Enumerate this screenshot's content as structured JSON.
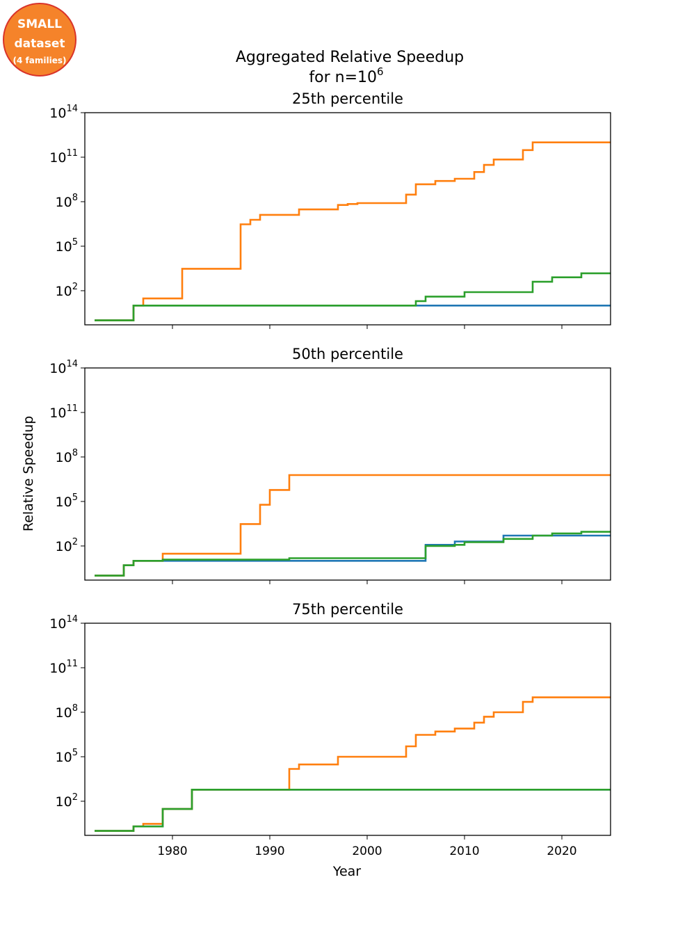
{
  "badge": {
    "line1": "SMALL",
    "line2": "dataset",
    "line3": "(4 families)",
    "fill": "#f5832a",
    "border": "#d9332a"
  },
  "figure_title": {
    "line1": "Aggregated Relative Speedup",
    "line2_prefix": "for n=10",
    "line2_exp": "6"
  },
  "shared_axes": {
    "xlabel": "Year",
    "ylabel": "Relative Speedup",
    "x_ticks": [
      1980,
      1990,
      2000,
      2010,
      2020
    ],
    "xlim": [
      1971,
      2025
    ],
    "y_ticks_exponents": [
      2,
      5,
      8,
      11,
      14
    ],
    "ylim_log10": [
      -0.3,
      14
    ]
  },
  "series_colors": {
    "blue": "#1f77b4",
    "orange": "#ff7f0e",
    "green": "#2ca02c"
  },
  "chart_data": [
    {
      "type": "line",
      "step": "post",
      "title": "25th percentile",
      "y_scale": "log",
      "series": [
        {
          "color": "blue",
          "points": [
            [
              1972,
              1
            ],
            [
              1976,
              10
            ],
            [
              2025,
              10
            ]
          ]
        },
        {
          "color": "orange",
          "points": [
            [
              1972,
              1
            ],
            [
              1976,
              10
            ],
            [
              1977,
              30
            ],
            [
              1981,
              3000
            ],
            [
              1987,
              3000000
            ],
            [
              1988,
              6000000
            ],
            [
              1989,
              13000000
            ],
            [
              1992,
              13000000
            ],
            [
              1993,
              30000000
            ],
            [
              1997,
              60000000
            ],
            [
              1998,
              70000000
            ],
            [
              1999,
              80000000
            ],
            [
              2004,
              300000000
            ],
            [
              2005,
              1500000000
            ],
            [
              2007,
              2500000000
            ],
            [
              2009,
              3500000000
            ],
            [
              2011,
              10000000000
            ],
            [
              2012,
              30000000000
            ],
            [
              2013,
              70000000000
            ],
            [
              2016,
              300000000000
            ],
            [
              2017,
              1000000000000
            ],
            [
              2025,
              1000000000000
            ]
          ]
        },
        {
          "color": "green",
          "points": [
            [
              1972,
              1
            ],
            [
              1976,
              10
            ],
            [
              2005,
              20
            ],
            [
              2006,
              40
            ],
            [
              2010,
              80
            ],
            [
              2017,
              400
            ],
            [
              2019,
              800
            ],
            [
              2022,
              1500
            ],
            [
              2025,
              1500
            ]
          ]
        }
      ]
    },
    {
      "type": "line",
      "step": "post",
      "title": "50th percentile",
      "y_scale": "log",
      "series": [
        {
          "color": "blue",
          "points": [
            [
              1972,
              1
            ],
            [
              1975,
              5
            ],
            [
              1976,
              10
            ],
            [
              2006,
              120
            ],
            [
              2009,
              200
            ],
            [
              2014,
              500
            ],
            [
              2025,
              500
            ]
          ]
        },
        {
          "color": "orange",
          "points": [
            [
              1972,
              1
            ],
            [
              1975,
              5
            ],
            [
              1976,
              10
            ],
            [
              1979,
              30
            ],
            [
              1987,
              3000
            ],
            [
              1989,
              60000
            ],
            [
              1990,
              600000
            ],
            [
              1992,
              6000000
            ],
            [
              2025,
              6000000
            ]
          ]
        },
        {
          "color": "green",
          "points": [
            [
              1972,
              1
            ],
            [
              1975,
              5
            ],
            [
              1976,
              10
            ],
            [
              1979,
              12
            ],
            [
              1992,
              15
            ],
            [
              2006,
              100
            ],
            [
              2009,
              120
            ],
            [
              2010,
              180
            ],
            [
              2014,
              300
            ],
            [
              2017,
              500
            ],
            [
              2019,
              700
            ],
            [
              2022,
              900
            ],
            [
              2025,
              900
            ]
          ]
        }
      ]
    },
    {
      "type": "line",
      "step": "post",
      "title": "75th percentile",
      "y_scale": "log",
      "series": [
        {
          "color": "blue",
          "points": [
            [
              1972,
              1
            ],
            [
              1976,
              2
            ],
            [
              1979,
              30
            ],
            [
              1982,
              600
            ],
            [
              2025,
              600
            ]
          ]
        },
        {
          "color": "orange",
          "points": [
            [
              1972,
              1
            ],
            [
              1976,
              2
            ],
            [
              1977,
              3
            ],
            [
              1979,
              30
            ],
            [
              1982,
              600
            ],
            [
              1992,
              15000
            ],
            [
              1993,
              30000
            ],
            [
              1997,
              100000
            ],
            [
              2004,
              500000
            ],
            [
              2005,
              3000000
            ],
            [
              2007,
              5000000
            ],
            [
              2009,
              8000000
            ],
            [
              2011,
              20000000
            ],
            [
              2012,
              50000000
            ],
            [
              2013,
              100000000
            ],
            [
              2016,
              500000000
            ],
            [
              2017,
              1000000000
            ],
            [
              2025,
              1000000000
            ]
          ]
        },
        {
          "color": "green",
          "points": [
            [
              1972,
              1
            ],
            [
              1976,
              2
            ],
            [
              1979,
              30
            ],
            [
              1982,
              600
            ],
            [
              2025,
              600
            ]
          ]
        }
      ]
    }
  ]
}
